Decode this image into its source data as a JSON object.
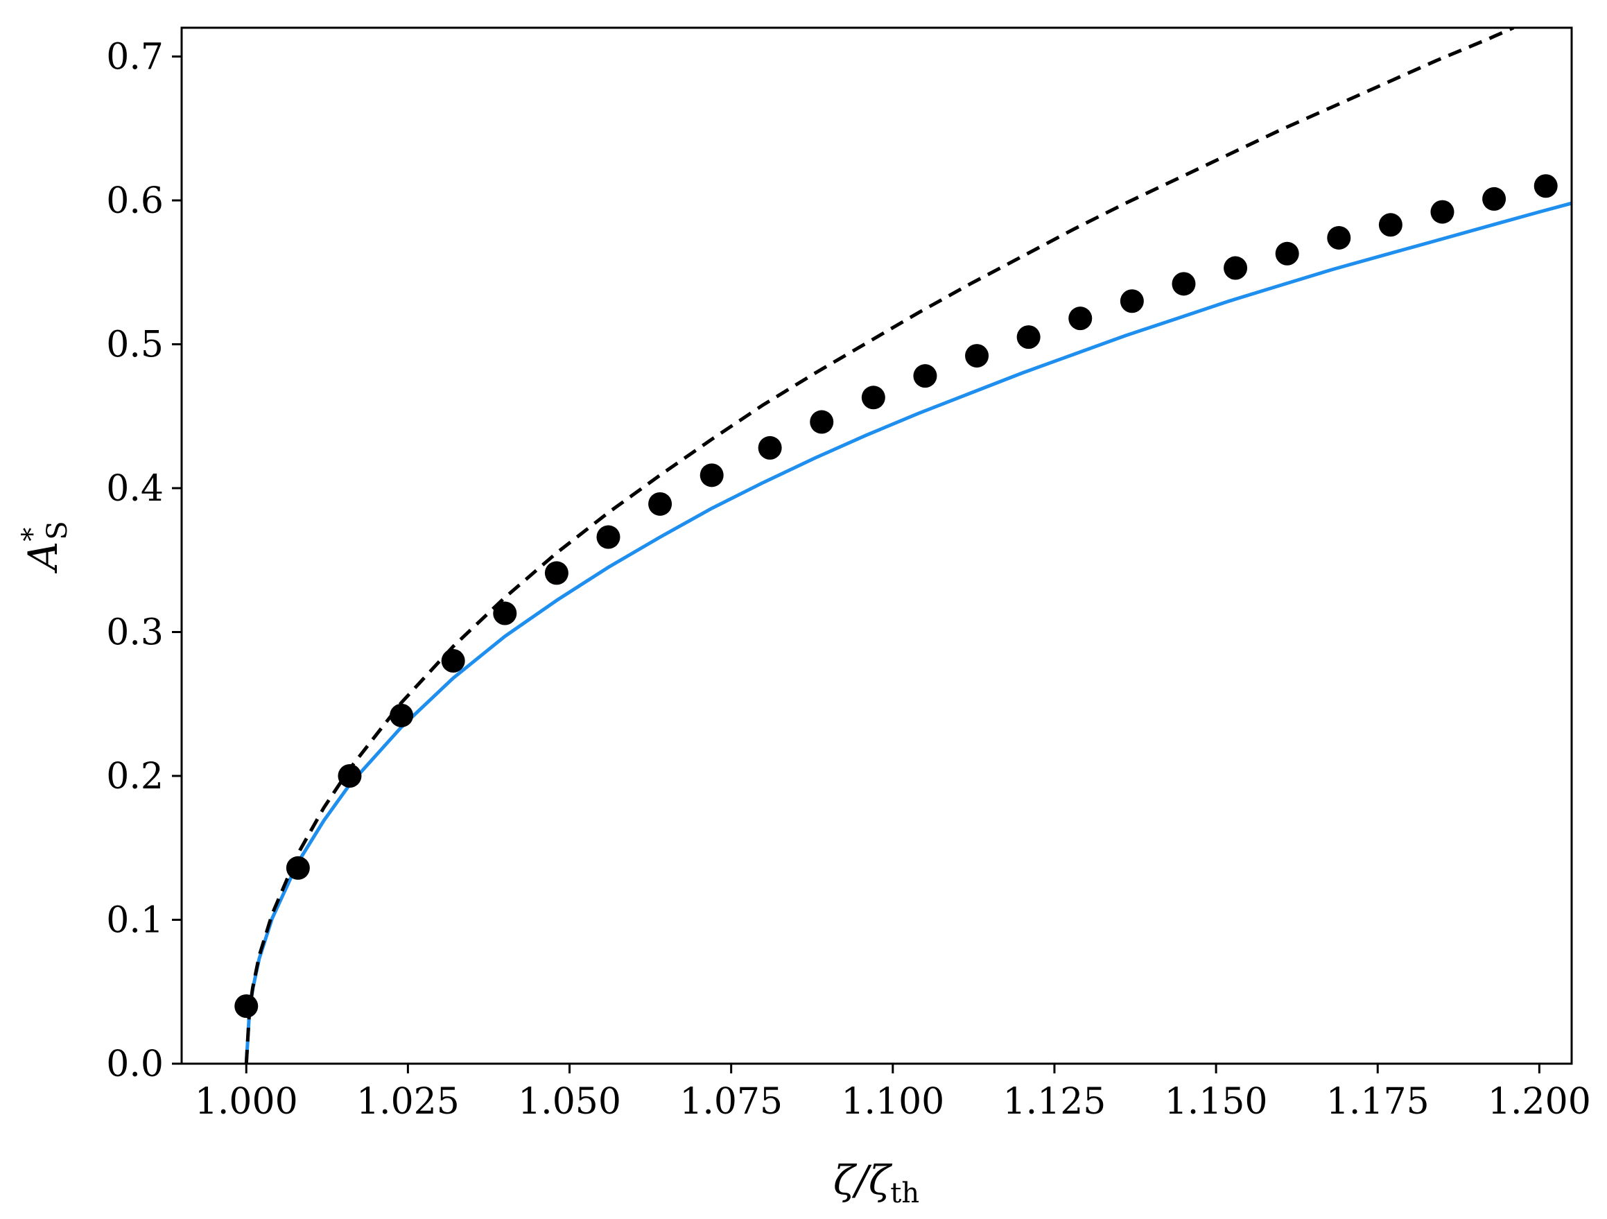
{
  "chart_data": {
    "type": "line",
    "xlabel": "ζ/ζth",
    "xlabel_main": "ζ/ζ",
    "xlabel_sub": "th",
    "ylabel": "A*S",
    "ylabel_main": "A",
    "ylabel_sup": "*",
    "ylabel_sub": "S",
    "xlim": [
      0.99,
      1.205
    ],
    "ylim": [
      0.0,
      0.72
    ],
    "xticks": [
      "1.000",
      "1.025",
      "1.050",
      "1.075",
      "1.100",
      "1.125",
      "1.150",
      "1.175",
      "1.200"
    ],
    "xtick_values": [
      1.0,
      1.025,
      1.05,
      1.075,
      1.1,
      1.125,
      1.15,
      1.175,
      1.2
    ],
    "yticks": [
      "0.0",
      "0.1",
      "0.2",
      "0.3",
      "0.4",
      "0.5",
      "0.6",
      "0.7"
    ],
    "ytick_values": [
      0.0,
      0.1,
      0.2,
      0.3,
      0.4,
      0.5,
      0.6,
      0.7
    ],
    "grid": false,
    "series": [
      {
        "style": "solid",
        "color": "#1f8fef",
        "points": [
          [
            1.0,
            0.0
          ],
          [
            1.0005,
            0.037
          ],
          [
            1.001,
            0.052
          ],
          [
            1.002,
            0.073
          ],
          [
            1.004,
            0.101
          ],
          [
            1.008,
            0.14
          ],
          [
            1.012,
            0.169
          ],
          [
            1.016,
            0.194
          ],
          [
            1.024,
            0.234
          ],
          [
            1.032,
            0.268
          ],
          [
            1.04,
            0.297
          ],
          [
            1.048,
            0.322
          ],
          [
            1.056,
            0.345
          ],
          [
            1.064,
            0.366
          ],
          [
            1.072,
            0.386
          ],
          [
            1.08,
            0.404
          ],
          [
            1.088,
            0.421
          ],
          [
            1.096,
            0.437
          ],
          [
            1.104,
            0.452
          ],
          [
            1.112,
            0.466
          ],
          [
            1.12,
            0.48
          ],
          [
            1.128,
            0.493
          ],
          [
            1.136,
            0.506
          ],
          [
            1.144,
            0.518
          ],
          [
            1.152,
            0.53
          ],
          [
            1.16,
            0.541
          ],
          [
            1.168,
            0.552
          ],
          [
            1.176,
            0.562
          ],
          [
            1.184,
            0.572
          ],
          [
            1.192,
            0.582
          ],
          [
            1.2,
            0.592
          ],
          [
            1.205,
            0.598
          ]
        ]
      },
      {
        "style": "dashed",
        "color": "#000000",
        "points": [
          [
            1.0,
            0.0
          ],
          [
            1.0005,
            0.0375
          ],
          [
            1.001,
            0.053
          ],
          [
            1.002,
            0.075
          ],
          [
            1.004,
            0.104
          ],
          [
            1.008,
            0.146
          ],
          [
            1.012,
            0.178
          ],
          [
            1.016,
            0.205
          ],
          [
            1.024,
            0.251
          ],
          [
            1.032,
            0.29
          ],
          [
            1.04,
            0.324
          ],
          [
            1.048,
            0.355
          ],
          [
            1.056,
            0.383
          ],
          [
            1.064,
            0.409
          ],
          [
            1.072,
            0.434
          ],
          [
            1.08,
            0.458
          ],
          [
            1.088,
            0.48
          ],
          [
            1.096,
            0.501
          ],
          [
            1.104,
            0.522
          ],
          [
            1.112,
            0.542
          ],
          [
            1.12,
            0.561
          ],
          [
            1.128,
            0.58
          ],
          [
            1.136,
            0.598
          ],
          [
            1.144,
            0.615
          ],
          [
            1.152,
            0.632
          ],
          [
            1.16,
            0.649
          ],
          [
            1.168,
            0.665
          ],
          [
            1.176,
            0.681
          ],
          [
            1.184,
            0.697
          ],
          [
            1.192,
            0.712
          ],
          [
            1.196,
            0.72
          ]
        ]
      },
      {
        "style": "markers",
        "color": "#000000",
        "points": [
          [
            1.0,
            0.04
          ],
          [
            1.008,
            0.136
          ],
          [
            1.016,
            0.2
          ],
          [
            1.024,
            0.242
          ],
          [
            1.032,
            0.28
          ],
          [
            1.04,
            0.313
          ],
          [
            1.048,
            0.341
          ],
          [
            1.056,
            0.366
          ],
          [
            1.064,
            0.389
          ],
          [
            1.072,
            0.409
          ],
          [
            1.081,
            0.428
          ],
          [
            1.089,
            0.446
          ],
          [
            1.097,
            0.463
          ],
          [
            1.105,
            0.478
          ],
          [
            1.113,
            0.492
          ],
          [
            1.121,
            0.505
          ],
          [
            1.129,
            0.518
          ],
          [
            1.137,
            0.53
          ],
          [
            1.145,
            0.542
          ],
          [
            1.153,
            0.553
          ],
          [
            1.161,
            0.563
          ],
          [
            1.169,
            0.574
          ],
          [
            1.177,
            0.583
          ],
          [
            1.185,
            0.592
          ],
          [
            1.193,
            0.601
          ],
          [
            1.201,
            0.61
          ]
        ]
      }
    ]
  }
}
